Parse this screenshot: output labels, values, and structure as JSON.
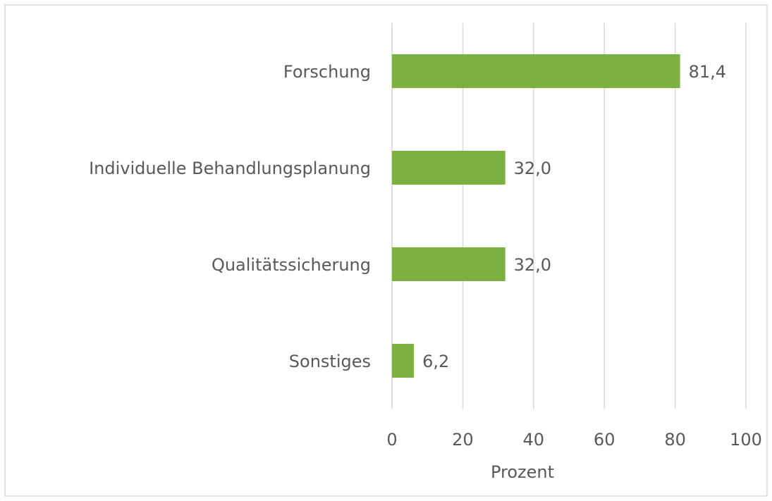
{
  "chart_data": {
    "type": "bar",
    "orientation": "horizontal",
    "categories": [
      "Forschung",
      "Individuelle Behandlungsplanung",
      "Qualitätssicherung",
      "Sonstiges"
    ],
    "values": [
      81.4,
      32.0,
      32.0,
      6.2
    ],
    "value_labels": [
      "81,4",
      "32,0",
      "32,0",
      "6,2"
    ],
    "color": "#7cb040",
    "x_label": "Prozent",
    "xlim": [
      0,
      100
    ],
    "xticks": [
      0,
      20,
      40,
      60,
      80,
      100
    ],
    "grid": true
  }
}
